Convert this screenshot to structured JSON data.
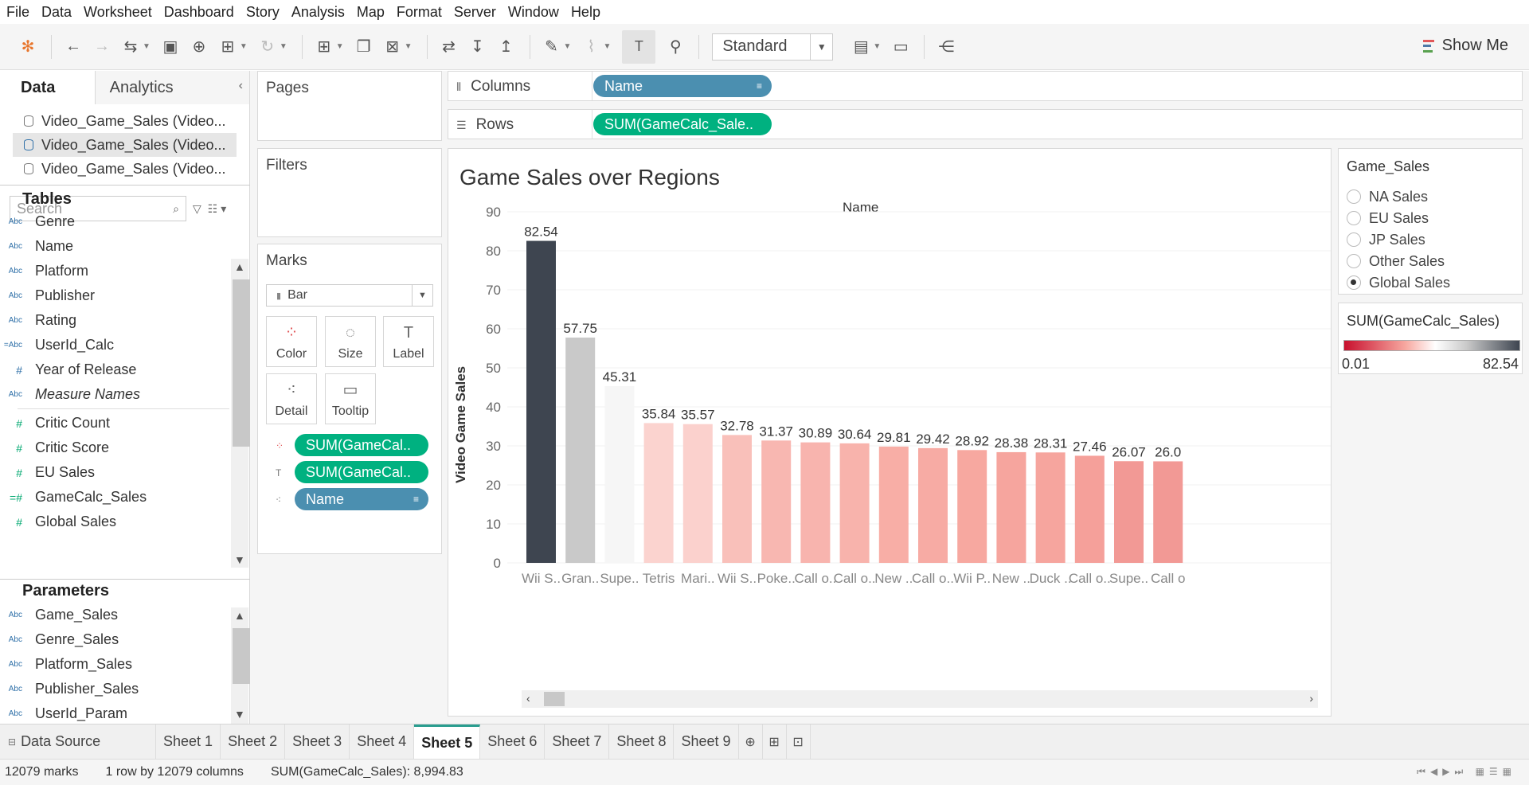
{
  "menu": [
    "File",
    "Data",
    "Worksheet",
    "Dashboard",
    "Story",
    "Analysis",
    "Map",
    "Format",
    "Server",
    "Window",
    "Help"
  ],
  "toolbar": {
    "fit_value": "Standard",
    "show_me_label": "Show Me"
  },
  "data_pane": {
    "tab_data": "Data",
    "tab_analytics": "Analytics",
    "datasources": [
      "Video_Game_Sales (Video...",
      "Video_Game_Sales (Video...",
      "Video_Game_Sales (Video..."
    ],
    "search_placeholder": "Search",
    "tables_title": "Tables",
    "dimensions": [
      {
        "name": "Genre",
        "icon": "Abc"
      },
      {
        "name": "Name",
        "icon": "Abc"
      },
      {
        "name": "Platform",
        "icon": "Abc"
      },
      {
        "name": "Publisher",
        "icon": "Abc"
      },
      {
        "name": "Rating",
        "icon": "Abc"
      },
      {
        "name": "UserId_Calc",
        "icon": "=Abc"
      },
      {
        "name": "Year of Release",
        "icon": "#"
      },
      {
        "name": "Measure Names",
        "icon": "Abc"
      }
    ],
    "measures": [
      {
        "name": "Critic Count",
        "icon": "#"
      },
      {
        "name": "Critic Score",
        "icon": "#"
      },
      {
        "name": "EU Sales",
        "icon": "#"
      },
      {
        "name": "GameCalc_Sales",
        "icon": "=#"
      },
      {
        "name": "Global Sales",
        "icon": "#"
      }
    ],
    "parameters_title": "Parameters",
    "parameters": [
      {
        "name": "Game_Sales",
        "icon": "Abc"
      },
      {
        "name": "Genre_Sales",
        "icon": "Abc"
      },
      {
        "name": "Platform_Sales",
        "icon": "Abc"
      },
      {
        "name": "Publisher_Sales",
        "icon": "Abc"
      },
      {
        "name": "UserId_Param",
        "icon": "Abc"
      }
    ]
  },
  "cards": {
    "pages": "Pages",
    "filters": "Filters",
    "marks": "Marks",
    "mark_type": "Bar",
    "mark_buttons": [
      "Color",
      "Size",
      "Label",
      "Detail",
      "Tooltip"
    ],
    "mark_pills": [
      "SUM(GameCal..",
      "SUM(GameCal..",
      "Name"
    ]
  },
  "shelves": {
    "columns_label": "Columns",
    "columns_pill": "Name",
    "rows_label": "Rows",
    "rows_pill": "SUM(GameCalc_Sale.."
  },
  "view": {
    "title": "Game Sales over Regions",
    "column_header": "Name",
    "y_axis_title": "Video Game Sales"
  },
  "chart_data": {
    "type": "bar",
    "title": "Game Sales over Regions",
    "xlabel": "Name",
    "ylabel": "Video Game Sales",
    "ylim": [
      0,
      90
    ],
    "yticks": [
      0,
      10,
      20,
      30,
      40,
      50,
      60,
      70,
      80,
      90
    ],
    "categories": [
      "Wii S..",
      "Gran..",
      "Supe..",
      "Tetris",
      "Mari..",
      "Wii S..",
      "Poke..",
      "Call o..",
      "Call o..",
      "New ..",
      "Call o..",
      "Wii P..",
      "New ..",
      "Duck ..",
      "Call o..",
      "Supe..",
      "Call o"
    ],
    "values": [
      82.54,
      57.75,
      45.31,
      35.84,
      35.57,
      32.78,
      31.37,
      30.89,
      30.64,
      29.81,
      29.42,
      28.92,
      28.38,
      28.31,
      27.46,
      26.07,
      26.03
    ],
    "value_labels": [
      "82.54",
      "57.75",
      "45.31",
      "35.84",
      "35.57",
      "32.78",
      "31.37",
      "30.89",
      "30.64",
      "29.81",
      "29.42",
      "28.92",
      "28.38",
      "28.31",
      "27.46",
      "26.07",
      "26.0"
    ],
    "color_scale": {
      "min": 0.01,
      "max": 82.54,
      "colors": [
        "#c8102e",
        "#f7a8a0",
        "#ffffff",
        "#c9c9c9",
        "#3e4550"
      ]
    },
    "grid": true
  },
  "legends": {
    "parameter_title": "Game_Sales",
    "options": [
      "NA Sales",
      "EU Sales",
      "JP Sales",
      "Other Sales",
      "Global Sales"
    ],
    "selected": "Global Sales",
    "color_title": "SUM(GameCalc_Sales)",
    "color_min": "0.01",
    "color_max": "82.54"
  },
  "sheets": {
    "data_source": "Data Source",
    "tabs": [
      "Sheet 1",
      "Sheet 2",
      "Sheet 3",
      "Sheet 4",
      "Sheet 5",
      "Sheet 6",
      "Sheet 7",
      "Sheet 8",
      "Sheet 9"
    ],
    "active": "Sheet 5"
  },
  "status": {
    "marks": "12079 marks",
    "dims": "1 row by 12079 columns",
    "sum": "SUM(GameCalc_Sales): 8,994.83"
  }
}
